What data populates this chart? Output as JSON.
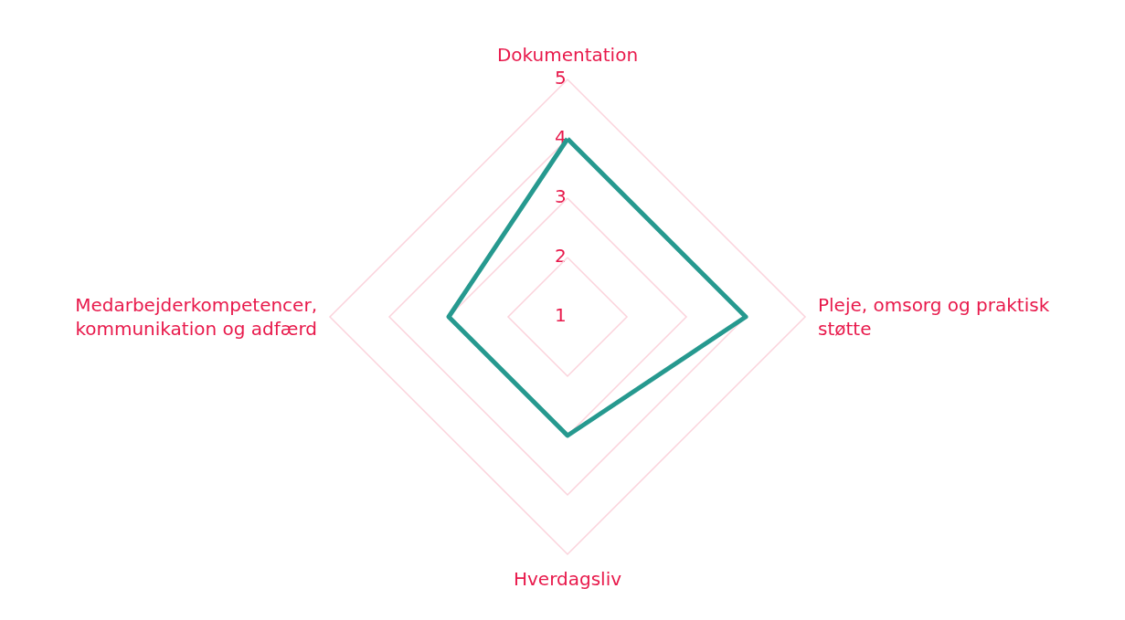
{
  "chart_data": {
    "type": "radar",
    "categories": [
      "Dokumentation",
      "Pleje, omsorg og praktisk støtte",
      "Hverdagsliv",
      "Medarbejderkompetencer, kommunikation og adfærd"
    ],
    "series": [
      {
        "color": "#26998f",
        "values": [
          4,
          4,
          3,
          3
        ]
      }
    ],
    "ylim": [
      1,
      5
    ],
    "yticks": [
      1,
      2,
      3,
      4,
      5
    ],
    "grid": true,
    "marker": "none",
    "line_style": "solid"
  }
}
